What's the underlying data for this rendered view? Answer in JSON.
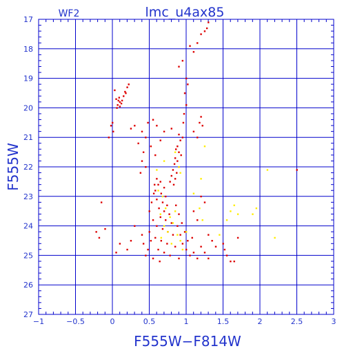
{
  "chart_data": {
    "type": "scatter",
    "title": "lmc_u4ax85",
    "subtitle": "WF2",
    "xlabel": "F555W−F814W",
    "ylabel": "F555W",
    "xlim": [
      -1,
      3
    ],
    "ylim": [
      17,
      27
    ],
    "y_inverted": true,
    "grid": true,
    "x_ticks": [
      -1,
      -0.5,
      0,
      0.5,
      1,
      1.5,
      2,
      2.5,
      3
    ],
    "x_tick_labels": [
      "−1",
      "−0.5",
      "0",
      "0.5",
      "1",
      "1.5",
      "2",
      "2.5",
      "3"
    ],
    "y_ticks": [
      17,
      18,
      19,
      20,
      21,
      22,
      23,
      24,
      25,
      26,
      27
    ],
    "y_tick_labels": [
      "17",
      "18",
      "19",
      "20",
      "21",
      "22",
      "23",
      "24",
      "25",
      "26",
      "27"
    ],
    "colors": {
      "frame": "#0000cc",
      "grid": "#0000cc",
      "text": "#2233cc",
      "primary_points": "#dd0000",
      "secondary_points": "#ffee00"
    },
    "series": [
      {
        "color": "red",
        "points": [
          [
            0.05,
            19.7
          ],
          [
            0.08,
            19.75
          ],
          [
            0.1,
            19.8
          ],
          [
            0.12,
            19.85
          ],
          [
            0.07,
            19.9
          ],
          [
            0.1,
            19.95
          ],
          [
            0.13,
            19.75
          ],
          [
            0.06,
            20.0
          ],
          [
            0.15,
            19.6
          ],
          [
            0.18,
            19.5
          ],
          [
            0.2,
            19.3
          ],
          [
            0.22,
            19.2
          ],
          [
            0.03,
            19.4
          ],
          [
            0.17,
            19.45
          ],
          [
            0.09,
            19.65
          ],
          [
            0.0,
            20.5
          ],
          [
            -0.02,
            20.6
          ],
          [
            0.01,
            20.8
          ],
          [
            -0.05,
            21.0
          ],
          [
            0.3,
            20.6
          ],
          [
            0.25,
            20.7
          ],
          [
            0.4,
            20.8
          ],
          [
            0.45,
            21.0
          ],
          [
            0.35,
            21.2
          ],
          [
            0.42,
            21.5
          ],
          [
            0.4,
            21.8
          ],
          [
            0.45,
            22.0
          ],
          [
            0.38,
            22.2
          ],
          [
            0.48,
            20.5
          ],
          [
            0.55,
            20.4
          ],
          [
            0.6,
            20.6
          ],
          [
            0.7,
            20.8
          ],
          [
            0.8,
            20.7
          ],
          [
            0.65,
            21.1
          ],
          [
            0.52,
            21.3
          ],
          [
            0.58,
            21.6
          ],
          [
            0.9,
            18.6
          ],
          [
            0.95,
            18.4
          ],
          [
            1.0,
            19.0
          ],
          [
            1.02,
            19.2
          ],
          [
            0.98,
            19.5
          ],
          [
            1.0,
            19.9
          ],
          [
            0.97,
            20.2
          ],
          [
            0.96,
            20.5
          ],
          [
            1.05,
            17.9
          ],
          [
            1.1,
            18.1
          ],
          [
            1.15,
            17.8
          ],
          [
            1.2,
            17.5
          ],
          [
            1.25,
            17.4
          ],
          [
            1.3,
            17.1
          ],
          [
            1.28,
            17.3
          ],
          [
            1.2,
            20.3
          ],
          [
            1.18,
            20.5
          ],
          [
            1.22,
            20.6
          ],
          [
            1.15,
            21.0
          ],
          [
            1.1,
            20.8
          ],
          [
            0.9,
            20.9
          ],
          [
            0.92,
            21.1
          ],
          [
            0.88,
            21.3
          ],
          [
            0.95,
            21.0
          ],
          [
            0.86,
            21.4
          ],
          [
            0.9,
            21.5
          ],
          [
            0.93,
            21.6
          ],
          [
            0.85,
            21.7
          ],
          [
            0.88,
            21.8
          ],
          [
            0.84,
            21.9
          ],
          [
            0.9,
            22.0
          ],
          [
            0.82,
            22.1
          ],
          [
            0.87,
            22.2
          ],
          [
            0.8,
            22.3
          ],
          [
            0.85,
            22.4
          ],
          [
            0.78,
            22.5
          ],
          [
            0.83,
            22.6
          ],
          [
            0.6,
            22.4
          ],
          [
            0.65,
            22.5
          ],
          [
            0.62,
            22.6
          ],
          [
            0.7,
            22.7
          ],
          [
            0.58,
            22.8
          ],
          [
            0.66,
            22.9
          ],
          [
            0.72,
            23.0
          ],
          [
            0.6,
            23.1
          ],
          [
            0.68,
            23.2
          ],
          [
            0.74,
            23.3
          ],
          [
            0.63,
            23.4
          ],
          [
            0.7,
            23.5
          ],
          [
            0.77,
            23.6
          ],
          [
            0.65,
            23.7
          ],
          [
            0.72,
            23.8
          ],
          [
            0.8,
            23.9
          ],
          [
            0.6,
            24.0
          ],
          [
            0.68,
            24.1
          ],
          [
            0.75,
            24.2
          ],
          [
            0.82,
            24.3
          ],
          [
            0.58,
            24.4
          ],
          [
            0.66,
            24.5
          ],
          [
            0.74,
            24.6
          ],
          [
            0.85,
            24.7
          ],
          [
            0.62,
            24.8
          ],
          [
            0.7,
            24.9
          ],
          [
            0.78,
            25.0
          ],
          [
            0.9,
            25.1
          ],
          [
            0.55,
            25.1
          ],
          [
            0.64,
            25.2
          ],
          [
            0.5,
            24.2
          ],
          [
            0.52,
            24.5
          ],
          [
            0.48,
            24.8
          ],
          [
            0.45,
            25.0
          ],
          [
            0.42,
            24.6
          ],
          [
            0.4,
            24.3
          ],
          [
            0.55,
            23.8
          ],
          [
            0.5,
            23.5
          ],
          [
            0.53,
            23.2
          ],
          [
            0.56,
            22.9
          ],
          [
            0.57,
            22.6
          ],
          [
            0.88,
            24.0
          ],
          [
            0.92,
            24.3
          ],
          [
            0.95,
            24.6
          ],
          [
            1.0,
            24.8
          ],
          [
            1.05,
            25.0
          ],
          [
            1.1,
            24.9
          ],
          [
            1.15,
            25.1
          ],
          [
            1.2,
            24.7
          ],
          [
            1.25,
            24.9
          ],
          [
            1.3,
            25.1
          ],
          [
            0.98,
            24.2
          ],
          [
            1.02,
            24.5
          ],
          [
            1.08,
            24.4
          ],
          [
            0.9,
            23.6
          ],
          [
            0.94,
            23.9
          ],
          [
            0.86,
            23.3
          ],
          [
            0.3,
            24.0
          ],
          [
            0.25,
            24.5
          ],
          [
            0.2,
            24.8
          ],
          [
            0.1,
            24.6
          ],
          [
            0.05,
            24.9
          ],
          [
            -0.1,
            24.1
          ],
          [
            -0.15,
            23.2
          ],
          [
            -0.22,
            24.2
          ],
          [
            -0.18,
            24.4
          ],
          [
            1.5,
            24.6
          ],
          [
            1.52,
            24.8
          ],
          [
            1.6,
            25.2
          ],
          [
            1.65,
            25.2
          ],
          [
            1.7,
            24.4
          ],
          [
            1.55,
            25.0
          ],
          [
            1.4,
            24.7
          ],
          [
            2.5,
            22.1
          ],
          [
            1.2,
            23.0
          ],
          [
            1.25,
            23.2
          ],
          [
            1.1,
            23.5
          ],
          [
            1.15,
            23.8
          ],
          [
            1.3,
            24.3
          ],
          [
            1.35,
            24.5
          ]
        ]
      },
      {
        "color": "yellow",
        "points": [
          [
            0.62,
            22.8
          ],
          [
            0.68,
            23.0
          ],
          [
            0.72,
            23.4
          ],
          [
            0.65,
            23.6
          ],
          [
            0.78,
            23.7
          ],
          [
            0.7,
            24.0
          ],
          [
            0.82,
            23.9
          ],
          [
            0.75,
            24.2
          ],
          [
            0.88,
            24.3
          ],
          [
            0.92,
            24.5
          ],
          [
            0.66,
            24.4
          ],
          [
            0.95,
            24.8
          ],
          [
            0.8,
            24.6
          ],
          [
            1.0,
            24.2
          ],
          [
            0.85,
            23.5
          ],
          [
            0.9,
            22.0
          ],
          [
            0.92,
            22.2
          ],
          [
            0.6,
            22.1
          ],
          [
            0.7,
            21.8
          ],
          [
            0.85,
            21.5
          ],
          [
            1.2,
            22.4
          ],
          [
            1.25,
            21.3
          ],
          [
            1.1,
            22.9
          ],
          [
            1.18,
            23.4
          ],
          [
            1.22,
            23.8
          ],
          [
            1.6,
            23.5
          ],
          [
            1.65,
            23.3
          ],
          [
            1.7,
            23.6
          ],
          [
            1.55,
            23.8
          ],
          [
            1.9,
            23.6
          ],
          [
            1.95,
            23.4
          ],
          [
            2.1,
            22.1
          ],
          [
            2.2,
            24.4
          ],
          [
            1.45,
            24.3
          ]
        ]
      }
    ]
  }
}
